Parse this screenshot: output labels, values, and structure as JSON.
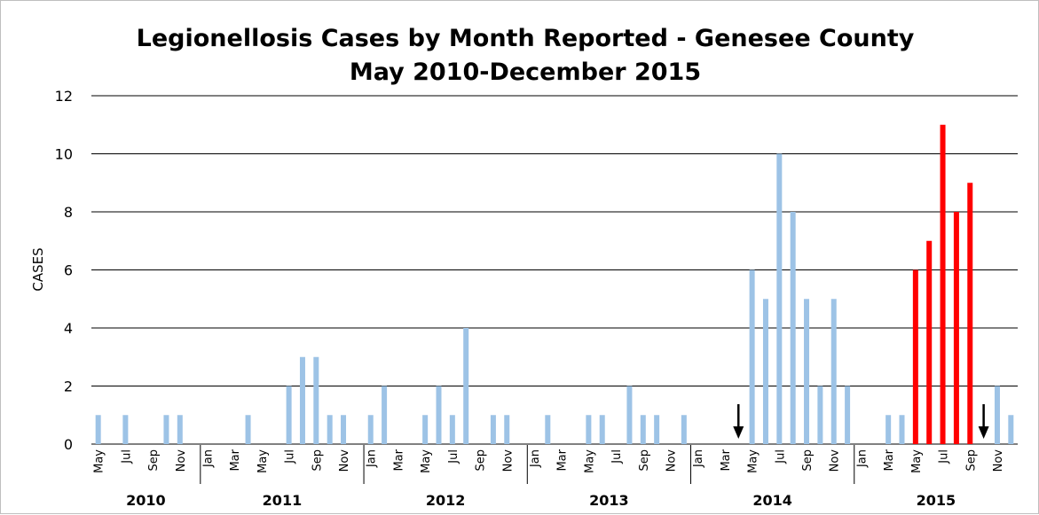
{
  "chart_data": {
    "type": "bar",
    "title": "Legionellosis Cases by Month Reported - Genesee County",
    "subtitle": "May 2010-December 2015",
    "xlabel": "",
    "ylabel": "CASES",
    "ylim": [
      0,
      12
    ],
    "yticks": [
      "0",
      "2",
      "4",
      "6",
      "8",
      "10",
      "12"
    ],
    "grid": true,
    "legend": "none",
    "colors": {
      "default": "#9dc3e6",
      "highlight": "#ff0000",
      "gridline": "#000000",
      "arrow": "#000000"
    },
    "categories": [
      "May 2010",
      "Jun 2010",
      "Jul 2010",
      "Aug 2010",
      "Sep 2010",
      "Oct 2010",
      "Nov 2010",
      "Dec 2010",
      "Jan 2011",
      "Feb 2011",
      "Mar 2011",
      "Apr 2011",
      "May 2011",
      "Jun 2011",
      "Jul 2011",
      "Aug 2011",
      "Sep 2011",
      "Oct 2011",
      "Nov 2011",
      "Dec 2011",
      "Jan 2012",
      "Feb 2012",
      "Mar 2012",
      "Apr 2012",
      "May 2012",
      "Jun 2012",
      "Jul 2012",
      "Aug 2012",
      "Sep 2012",
      "Oct 2012",
      "Nov 2012",
      "Dec 2012",
      "Jan 2013",
      "Feb 2013",
      "Mar 2013",
      "Apr 2013",
      "May 2013",
      "Jun 2013",
      "Jul 2013",
      "Aug 2013",
      "Sep 2013",
      "Oct 2013",
      "Nov 2013",
      "Dec 2013",
      "Jan 2014",
      "Feb 2014",
      "Mar 2014",
      "Apr 2014",
      "May 2014",
      "Jun 2014",
      "Jul 2014",
      "Aug 2014",
      "Sep 2014",
      "Oct 2014",
      "Nov 2014",
      "Dec 2014",
      "Jan 2015",
      "Feb 2015",
      "Mar 2015",
      "Apr 2015",
      "May 2015",
      "Jun 2015",
      "Jul 2015",
      "Aug 2015",
      "Sep 2015",
      "Oct 2015",
      "Nov 2015",
      "Dec 2015"
    ],
    "tick_labels": [
      "May",
      "",
      "Jul",
      "",
      "Sep",
      "",
      "Nov",
      "",
      "Jan",
      "",
      "Mar",
      "",
      "May",
      "",
      "Jul",
      "",
      "Sep",
      "",
      "Nov",
      "",
      "Jan",
      "",
      "Mar",
      "",
      "May",
      "",
      "Jul",
      "",
      "Sep",
      "",
      "Nov",
      "",
      "Jan",
      "",
      "Mar",
      "",
      "May",
      "",
      "Jul",
      "",
      "Sep",
      "",
      "Nov",
      "",
      "Jan",
      "",
      "Mar",
      "",
      "May",
      "",
      "Jul",
      "",
      "Sep",
      "",
      "Nov",
      "",
      "Jan",
      "",
      "Mar",
      "",
      "May",
      "",
      "Jul",
      "",
      "Sep",
      "",
      "Nov",
      ""
    ],
    "values": [
      1,
      0,
      1,
      0,
      0,
      1,
      1,
      0,
      0,
      0,
      0,
      1,
      0,
      0,
      2,
      3,
      3,
      1,
      1,
      0,
      1,
      2,
      0,
      0,
      1,
      2,
      1,
      4,
      0,
      1,
      1,
      0,
      0,
      1,
      0,
      0,
      1,
      1,
      0,
      2,
      1,
      1,
      0,
      1,
      0,
      0,
      0,
      0,
      6,
      5,
      10,
      8,
      5,
      2,
      5,
      2,
      0,
      0,
      1,
      1,
      6,
      7,
      11,
      8,
      9,
      0,
      2,
      1
    ],
    "highlighted": [
      "May 2015",
      "Jun 2015",
      "Jul 2015",
      "Aug 2015",
      "Sep 2015"
    ],
    "years": [
      {
        "label": "2010",
        "start": 0,
        "end": 7
      },
      {
        "label": "2011",
        "start": 8,
        "end": 19
      },
      {
        "label": "2012",
        "start": 20,
        "end": 31
      },
      {
        "label": "2013",
        "start": 32,
        "end": 43
      },
      {
        "label": "2014",
        "start": 44,
        "end": 55
      },
      {
        "label": "2015",
        "start": 56,
        "end": 67
      }
    ],
    "annotations": [
      {
        "type": "down-arrow",
        "at": "Apr 2014"
      },
      {
        "type": "down-arrow",
        "at": "Oct 2015"
      }
    ]
  }
}
